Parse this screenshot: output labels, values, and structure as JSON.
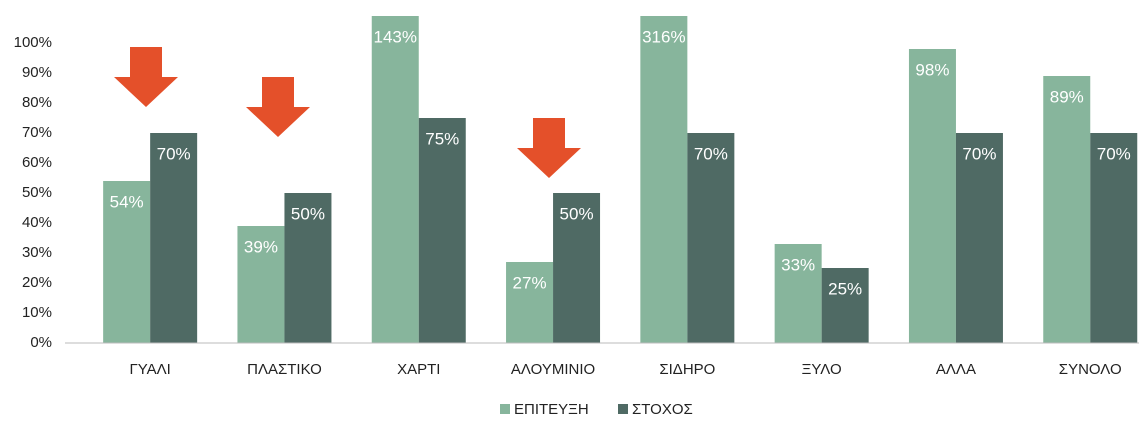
{
  "chart_data": {
    "type": "bar",
    "categories": [
      "ΓΥΑΛΙ",
      "ΠΛΑΣΤΙΚΟ",
      "ΧΑΡΤΙ",
      "ΑΛΟΥΜΙΝΙΟ",
      "ΣΙΔΗΡΟ",
      "ΞΥΛΟ",
      "ΑΛΛΑ",
      "ΣΥΝΟΛΟ"
    ],
    "series": [
      {
        "name": "ΕΠΙΤΕΥΞΗ",
        "color": "#87b59c",
        "values": [
          54,
          39,
          143,
          27,
          316,
          33,
          98,
          89
        ],
        "value_labels": [
          "54%",
          "39%",
          "143%",
          "27%",
          "316%",
          "33%",
          "98%",
          "89%"
        ]
      },
      {
        "name": "ΣΤΟΧΟΣ",
        "color": "#4f6a64",
        "values": [
          70,
          50,
          75,
          50,
          70,
          25,
          70,
          70
        ],
        "value_labels": [
          "70%",
          "50%",
          "75%",
          "50%",
          "70%",
          "25%",
          "70%",
          "70%"
        ]
      }
    ],
    "ylim": [
      0,
      109
    ],
    "yticks": [
      {
        "value": 0,
        "label": "0%"
      },
      {
        "value": 10,
        "label": "10%"
      },
      {
        "value": 20,
        "label": "20%"
      },
      {
        "value": 30,
        "label": "30%"
      },
      {
        "value": 40,
        "label": "40%"
      },
      {
        "value": 50,
        "label": "50%"
      },
      {
        "value": 60,
        "label": "60%"
      },
      {
        "value": 70,
        "label": "70%"
      },
      {
        "value": 80,
        "label": "80%"
      },
      {
        "value": 90,
        "label": "90%"
      },
      {
        "value": 100,
        "label": "100%"
      }
    ],
    "legend": "bottom"
  }
}
